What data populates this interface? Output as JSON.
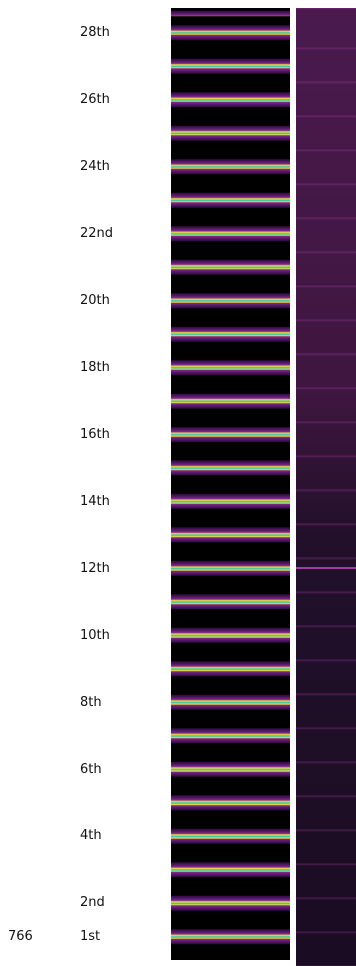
{
  "frequency": "766",
  "harmonics": [
    "28th",
    "26th",
    "24th",
    "22nd",
    "20th",
    "18th",
    "16th",
    "14th",
    "12th",
    "10th",
    "8th",
    "6th",
    "4th",
    "2nd",
    "1st"
  ]
}
